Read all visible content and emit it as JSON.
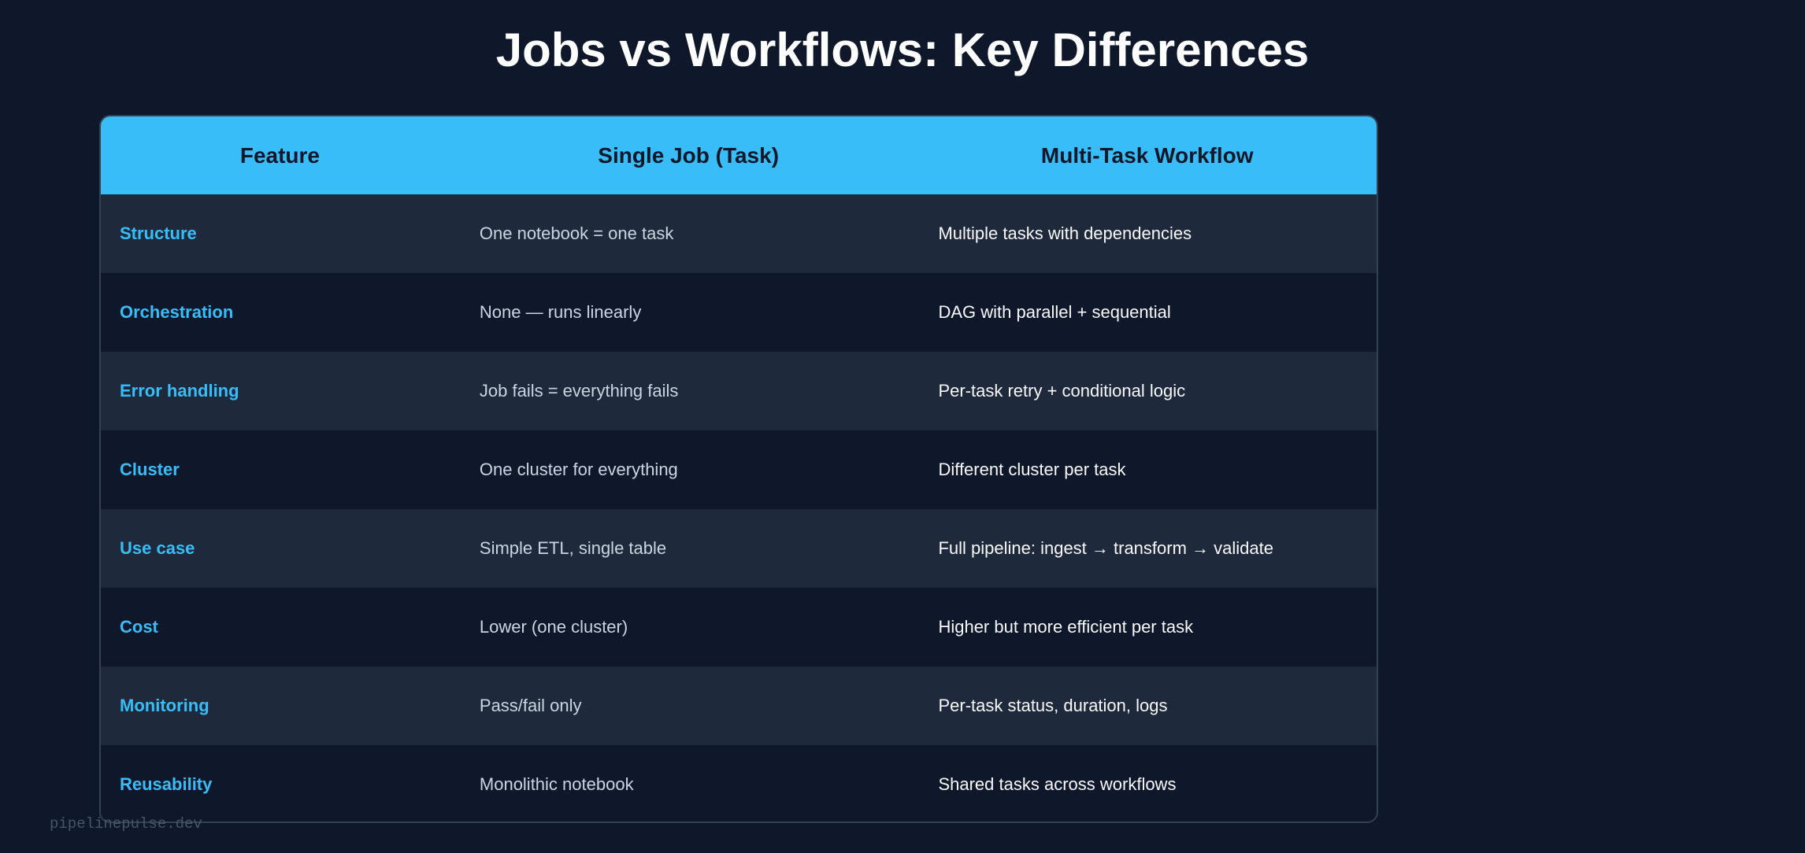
{
  "title": "Jobs vs Workflows: Key Differences",
  "colors": {
    "background": "#0f172a",
    "header": "#38bdf8",
    "row_alt": "#1e293b",
    "feature_text": "#38bdf8"
  },
  "table": {
    "headers": [
      "Feature",
      "Single Job (Task)",
      "Multi-Task Workflow"
    ],
    "rows": [
      [
        "Structure",
        "One notebook = one task",
        "Multiple tasks with dependencies"
      ],
      [
        "Orchestration",
        "None — runs linearly",
        "DAG with parallel + sequential"
      ],
      [
        "Error handling",
        "Job fails = everything fails",
        "Per-task retry + conditional logic"
      ],
      [
        "Cluster",
        "One cluster for everything",
        "Different cluster per task"
      ],
      [
        "Use case",
        "Simple ETL, single table",
        "Full pipeline: ingest →  transform →  validate"
      ],
      [
        "Cost",
        "Lower (one cluster)",
        "Higher but more efficient per task"
      ],
      [
        "Monitoring",
        "Pass/fail only",
        "Per-task status, duration, logs"
      ],
      [
        "Reusability",
        "Monolithic notebook",
        "Shared tasks across workflows"
      ]
    ]
  },
  "watermark": "pipelinepulse.dev"
}
